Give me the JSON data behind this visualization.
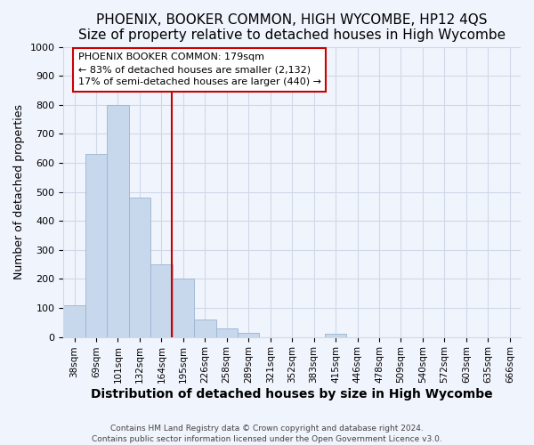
{
  "title": "PHOENIX, BOOKER COMMON, HIGH WYCOMBE, HP12 4QS",
  "subtitle": "Size of property relative to detached houses in High Wycombe",
  "xlabel": "Distribution of detached houses by size in High Wycombe",
  "ylabel": "Number of detached properties",
  "bar_labels": [
    "38sqm",
    "69sqm",
    "101sqm",
    "132sqm",
    "164sqm",
    "195sqm",
    "226sqm",
    "258sqm",
    "289sqm",
    "321sqm",
    "352sqm",
    "383sqm",
    "415sqm",
    "446sqm",
    "478sqm",
    "509sqm",
    "540sqm",
    "572sqm",
    "603sqm",
    "635sqm",
    "666sqm"
  ],
  "bar_values": [
    110,
    630,
    800,
    480,
    250,
    200,
    60,
    30,
    15,
    0,
    0,
    0,
    10,
    0,
    0,
    0,
    0,
    0,
    0,
    0,
    0
  ],
  "bar_color": "#c8d8ec",
  "bar_edge_color": "#9ab4d0",
  "vline_color": "#cc0000",
  "annotation_title": "PHOENIX BOOKER COMMON: 179sqm",
  "annotation_line1": "← 83% of detached houses are smaller (2,132)",
  "annotation_line2": "17% of semi-detached houses are larger (440) →",
  "annotation_box_color": "#ffffff",
  "annotation_box_edge": "#cc0000",
  "ylim": [
    0,
    1000
  ],
  "yticks": [
    0,
    100,
    200,
    300,
    400,
    500,
    600,
    700,
    800,
    900,
    1000
  ],
  "footer1": "Contains HM Land Registry data © Crown copyright and database right 2024.",
  "footer2": "Contains public sector information licensed under the Open Government Licence v3.0.",
  "bg_color": "#f0f4fc",
  "grid_color": "#d0d8e8",
  "title_fontsize": 11,
  "subtitle_fontsize": 9,
  "xlabel_fontsize": 10,
  "ylabel_fontsize": 9,
  "tick_fontsize": 7.5,
  "footer_fontsize": 6.5
}
